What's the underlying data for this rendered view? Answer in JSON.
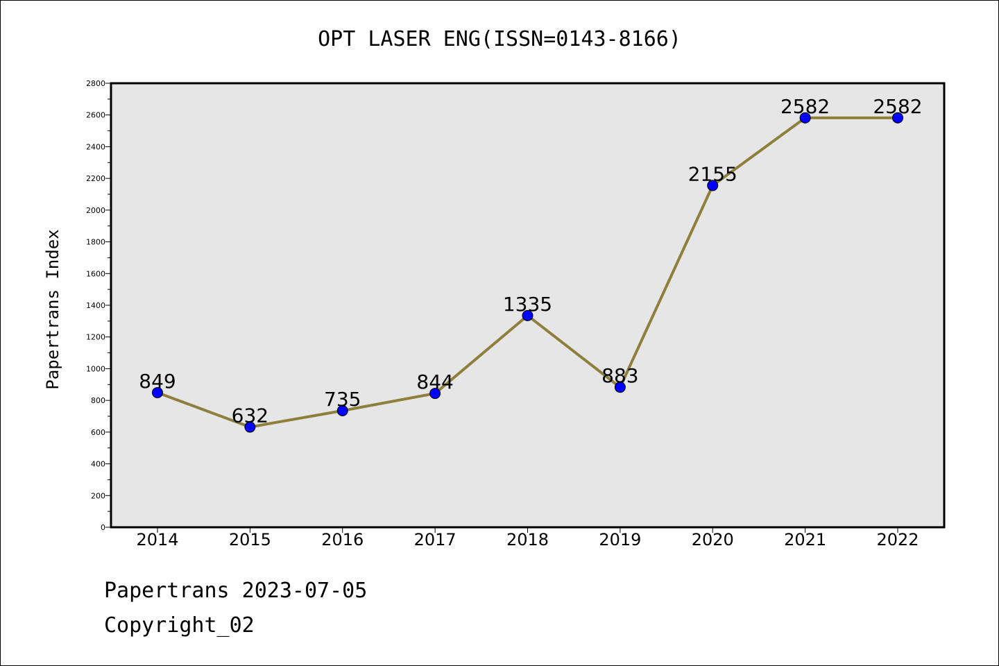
{
  "chart_data": {
    "type": "line",
    "title": "OPT LASER ENG(ISSN=0143-8166)",
    "xlabel": "",
    "ylabel": "Papertrans Index",
    "categories": [
      "2014",
      "2015",
      "2016",
      "2017",
      "2018",
      "2019",
      "2020",
      "2021",
      "2022"
    ],
    "series": [
      {
        "values": [
          849,
          632,
          735,
          844,
          1335,
          883,
          2155,
          2582,
          2582
        ]
      }
    ],
    "data_labels": [
      "849",
      "632",
      "735",
      "844",
      "1335",
      "883",
      "2155",
      "2582",
      "2582"
    ],
    "ylim": [
      0,
      2800
    ],
    "yticks": [
      0,
      200,
      400,
      600,
      800,
      1000,
      1200,
      1400,
      1600,
      1800,
      2000,
      2200,
      2400,
      2600,
      2800
    ],
    "grid": false,
    "legend": "none",
    "colors": {
      "line": "#8e7f3c",
      "marker": "#0000ff",
      "plot_background": "#e6e6e6"
    }
  },
  "footer": {
    "line1": "Papertrans 2023-07-05",
    "line2": "Copyright_02"
  }
}
